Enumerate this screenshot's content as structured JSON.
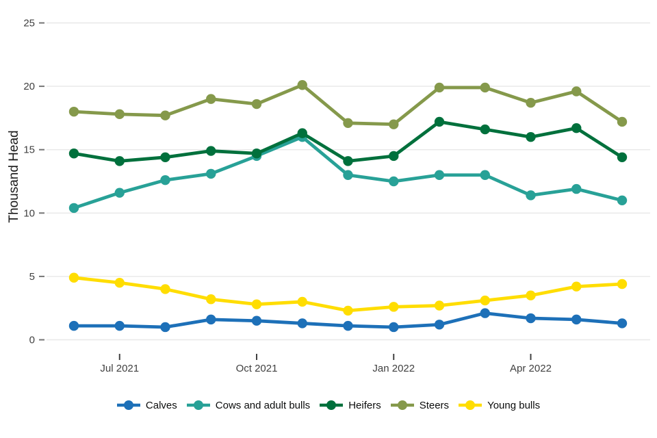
{
  "chart_data": {
    "type": "line",
    "title": "",
    "ylabel": "Thousand Head",
    "xlabel": "",
    "ylim": [
      0,
      25
    ],
    "yticks": [
      0,
      5,
      10,
      15,
      20,
      25
    ],
    "grid": "horizontal",
    "legend_position": "bottom",
    "x": [
      "Jun 2021",
      "Jul 2021",
      "Aug 2021",
      "Sep 2021",
      "Oct 2021",
      "Nov 2021",
      "Dec 2021",
      "Jan 2022",
      "Feb 2022",
      "Mar 2022",
      "Apr 2022",
      "May 2022",
      "Jun 2022"
    ],
    "xtick_labels": [
      "Jul 2021",
      "Oct 2021",
      "Jan 2022",
      "Apr 2022"
    ],
    "xtick_indices": [
      1,
      4,
      7,
      10
    ],
    "series": [
      {
        "name": "Calves",
        "color": "#1d70b8",
        "values": [
          1.1,
          1.1,
          1.0,
          1.6,
          1.5,
          1.3,
          1.1,
          1.0,
          1.2,
          2.1,
          1.7,
          1.6,
          1.3
        ]
      },
      {
        "name": "Cows and adult bulls",
        "color": "#28a197",
        "values": [
          10.4,
          11.6,
          12.6,
          13.1,
          14.5,
          16.0,
          13.0,
          12.5,
          13.0,
          13.0,
          11.4,
          11.9,
          11.0
        ]
      },
      {
        "name": "Heifers",
        "color": "#00703c",
        "values": [
          14.7,
          14.1,
          14.4,
          14.9,
          14.7,
          16.3,
          14.1,
          14.5,
          17.2,
          16.6,
          16.0,
          16.7,
          14.4
        ]
      },
      {
        "name": "Steers",
        "color": "#85994b",
        "values": [
          18.0,
          17.8,
          17.7,
          19.0,
          18.6,
          20.1,
          17.1,
          17.0,
          19.9,
          19.9,
          18.7,
          19.6,
          17.2
        ]
      },
      {
        "name": "Young bulls",
        "color": "#ffdd00",
        "values": [
          4.9,
          4.5,
          4.0,
          3.2,
          2.8,
          3.0,
          2.3,
          2.6,
          2.7,
          3.1,
          3.5,
          4.2,
          4.4
        ]
      }
    ]
  }
}
